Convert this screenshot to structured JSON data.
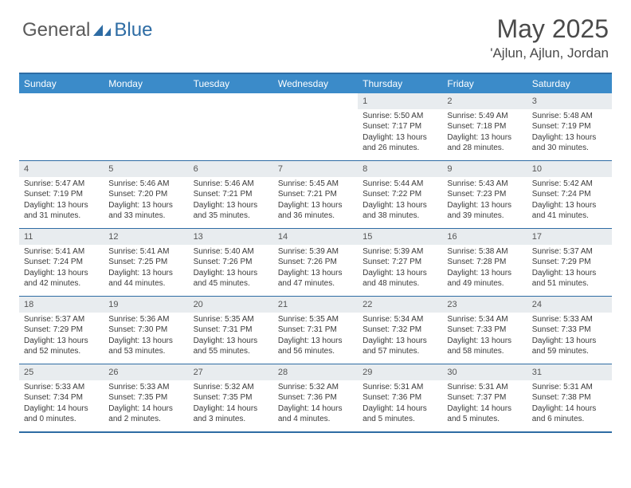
{
  "brand": {
    "general": "General",
    "blue": "Blue"
  },
  "title": "May 2025",
  "location": "'Ajlun, Ajlun, Jordan",
  "colors": {
    "header_bg": "#3b8bc9",
    "border": "#2e6ca4",
    "daynum_bg": "#e8ecef",
    "text": "#3a3a3a",
    "logo_blue": "#2e6ca4",
    "logo_gray": "#5a5a5a"
  },
  "day_names": [
    "Sunday",
    "Monday",
    "Tuesday",
    "Wednesday",
    "Thursday",
    "Friday",
    "Saturday"
  ],
  "weeks": [
    [
      {
        "n": "",
        "sr": "",
        "ss": "",
        "dl": ""
      },
      {
        "n": "",
        "sr": "",
        "ss": "",
        "dl": ""
      },
      {
        "n": "",
        "sr": "",
        "ss": "",
        "dl": ""
      },
      {
        "n": "",
        "sr": "",
        "ss": "",
        "dl": ""
      },
      {
        "n": "1",
        "sr": "Sunrise: 5:50 AM",
        "ss": "Sunset: 7:17 PM",
        "dl": "Daylight: 13 hours and 26 minutes."
      },
      {
        "n": "2",
        "sr": "Sunrise: 5:49 AM",
        "ss": "Sunset: 7:18 PM",
        "dl": "Daylight: 13 hours and 28 minutes."
      },
      {
        "n": "3",
        "sr": "Sunrise: 5:48 AM",
        "ss": "Sunset: 7:19 PM",
        "dl": "Daylight: 13 hours and 30 minutes."
      }
    ],
    [
      {
        "n": "4",
        "sr": "Sunrise: 5:47 AM",
        "ss": "Sunset: 7:19 PM",
        "dl": "Daylight: 13 hours and 31 minutes."
      },
      {
        "n": "5",
        "sr": "Sunrise: 5:46 AM",
        "ss": "Sunset: 7:20 PM",
        "dl": "Daylight: 13 hours and 33 minutes."
      },
      {
        "n": "6",
        "sr": "Sunrise: 5:46 AM",
        "ss": "Sunset: 7:21 PM",
        "dl": "Daylight: 13 hours and 35 minutes."
      },
      {
        "n": "7",
        "sr": "Sunrise: 5:45 AM",
        "ss": "Sunset: 7:21 PM",
        "dl": "Daylight: 13 hours and 36 minutes."
      },
      {
        "n": "8",
        "sr": "Sunrise: 5:44 AM",
        "ss": "Sunset: 7:22 PM",
        "dl": "Daylight: 13 hours and 38 minutes."
      },
      {
        "n": "9",
        "sr": "Sunrise: 5:43 AM",
        "ss": "Sunset: 7:23 PM",
        "dl": "Daylight: 13 hours and 39 minutes."
      },
      {
        "n": "10",
        "sr": "Sunrise: 5:42 AM",
        "ss": "Sunset: 7:24 PM",
        "dl": "Daylight: 13 hours and 41 minutes."
      }
    ],
    [
      {
        "n": "11",
        "sr": "Sunrise: 5:41 AM",
        "ss": "Sunset: 7:24 PM",
        "dl": "Daylight: 13 hours and 42 minutes."
      },
      {
        "n": "12",
        "sr": "Sunrise: 5:41 AM",
        "ss": "Sunset: 7:25 PM",
        "dl": "Daylight: 13 hours and 44 minutes."
      },
      {
        "n": "13",
        "sr": "Sunrise: 5:40 AM",
        "ss": "Sunset: 7:26 PM",
        "dl": "Daylight: 13 hours and 45 minutes."
      },
      {
        "n": "14",
        "sr": "Sunrise: 5:39 AM",
        "ss": "Sunset: 7:26 PM",
        "dl": "Daylight: 13 hours and 47 minutes."
      },
      {
        "n": "15",
        "sr": "Sunrise: 5:39 AM",
        "ss": "Sunset: 7:27 PM",
        "dl": "Daylight: 13 hours and 48 minutes."
      },
      {
        "n": "16",
        "sr": "Sunrise: 5:38 AM",
        "ss": "Sunset: 7:28 PM",
        "dl": "Daylight: 13 hours and 49 minutes."
      },
      {
        "n": "17",
        "sr": "Sunrise: 5:37 AM",
        "ss": "Sunset: 7:29 PM",
        "dl": "Daylight: 13 hours and 51 minutes."
      }
    ],
    [
      {
        "n": "18",
        "sr": "Sunrise: 5:37 AM",
        "ss": "Sunset: 7:29 PM",
        "dl": "Daylight: 13 hours and 52 minutes."
      },
      {
        "n": "19",
        "sr": "Sunrise: 5:36 AM",
        "ss": "Sunset: 7:30 PM",
        "dl": "Daylight: 13 hours and 53 minutes."
      },
      {
        "n": "20",
        "sr": "Sunrise: 5:35 AM",
        "ss": "Sunset: 7:31 PM",
        "dl": "Daylight: 13 hours and 55 minutes."
      },
      {
        "n": "21",
        "sr": "Sunrise: 5:35 AM",
        "ss": "Sunset: 7:31 PM",
        "dl": "Daylight: 13 hours and 56 minutes."
      },
      {
        "n": "22",
        "sr": "Sunrise: 5:34 AM",
        "ss": "Sunset: 7:32 PM",
        "dl": "Daylight: 13 hours and 57 minutes."
      },
      {
        "n": "23",
        "sr": "Sunrise: 5:34 AM",
        "ss": "Sunset: 7:33 PM",
        "dl": "Daylight: 13 hours and 58 minutes."
      },
      {
        "n": "24",
        "sr": "Sunrise: 5:33 AM",
        "ss": "Sunset: 7:33 PM",
        "dl": "Daylight: 13 hours and 59 minutes."
      }
    ],
    [
      {
        "n": "25",
        "sr": "Sunrise: 5:33 AM",
        "ss": "Sunset: 7:34 PM",
        "dl": "Daylight: 14 hours and 0 minutes."
      },
      {
        "n": "26",
        "sr": "Sunrise: 5:33 AM",
        "ss": "Sunset: 7:35 PM",
        "dl": "Daylight: 14 hours and 2 minutes."
      },
      {
        "n": "27",
        "sr": "Sunrise: 5:32 AM",
        "ss": "Sunset: 7:35 PM",
        "dl": "Daylight: 14 hours and 3 minutes."
      },
      {
        "n": "28",
        "sr": "Sunrise: 5:32 AM",
        "ss": "Sunset: 7:36 PM",
        "dl": "Daylight: 14 hours and 4 minutes."
      },
      {
        "n": "29",
        "sr": "Sunrise: 5:31 AM",
        "ss": "Sunset: 7:36 PM",
        "dl": "Daylight: 14 hours and 5 minutes."
      },
      {
        "n": "30",
        "sr": "Sunrise: 5:31 AM",
        "ss": "Sunset: 7:37 PM",
        "dl": "Daylight: 14 hours and 5 minutes."
      },
      {
        "n": "31",
        "sr": "Sunrise: 5:31 AM",
        "ss": "Sunset: 7:38 PM",
        "dl": "Daylight: 14 hours and 6 minutes."
      }
    ]
  ]
}
